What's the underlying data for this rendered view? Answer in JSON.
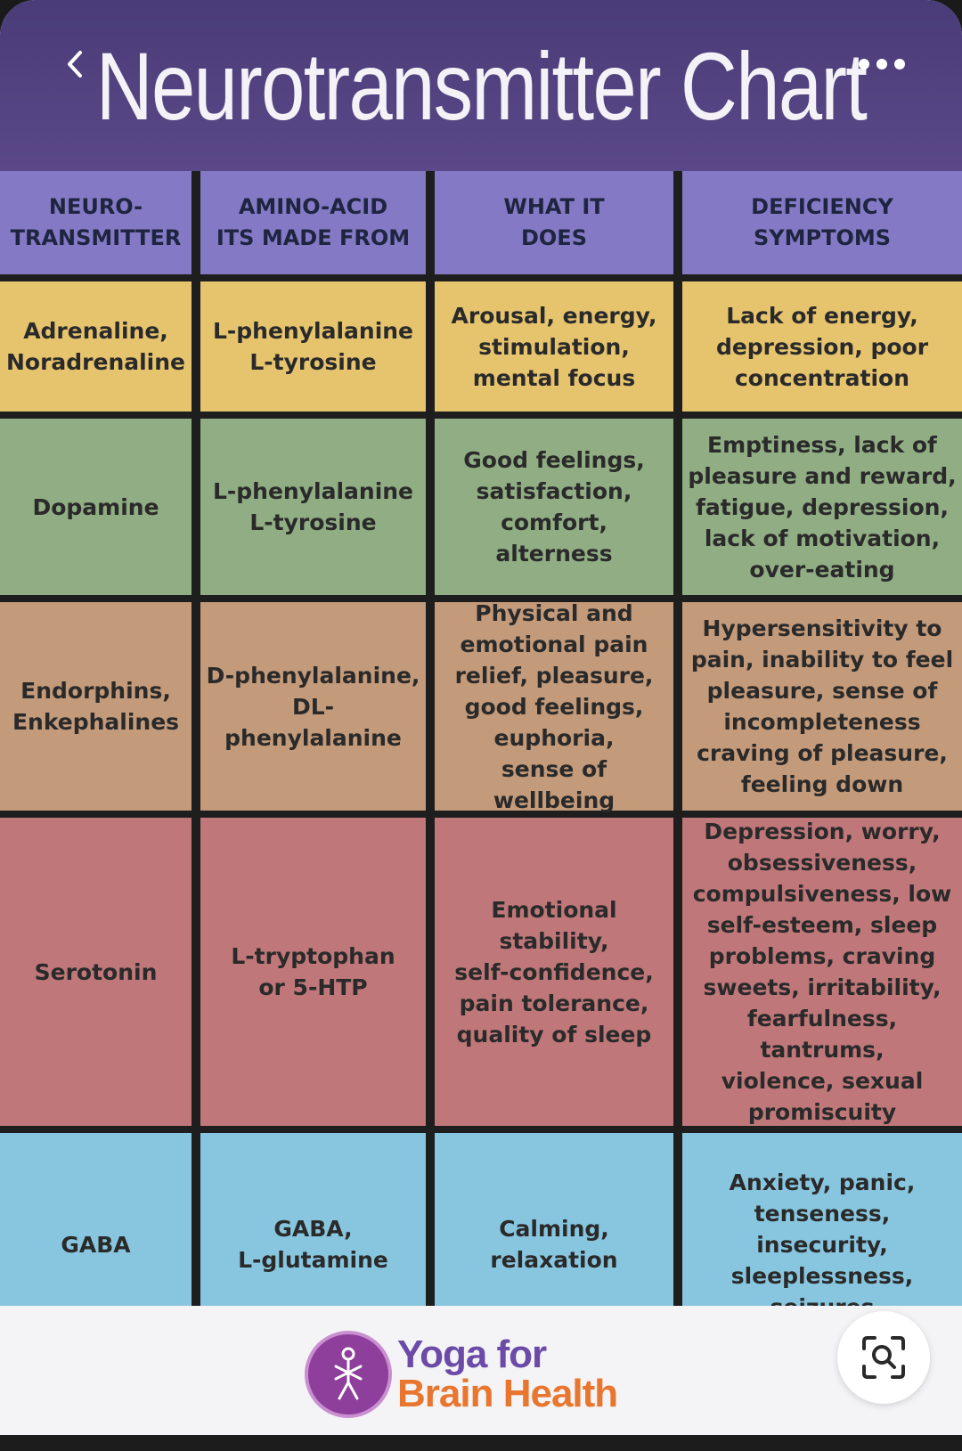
{
  "header": {
    "title": "Neurotransmitter Chart"
  },
  "table": {
    "headers": [
      "NEURO-\nTRANSMITTER",
      "AMINO-ACID\nITS MADE FROM",
      "WHAT IT\nDOES",
      "DEFICIENCY\nSYMPTOMS"
    ],
    "rows": [
      [
        "Adrenaline,\nNoradrenaline",
        "L-phenylalanine\nL-tyrosine",
        "Arousal, energy,\nstimulation,\nmental focus",
        "Lack of energy,\ndepression, poor\nconcentration"
      ],
      [
        "Dopamine",
        "L-phenylalanine\nL-tyrosine",
        "Good feelings,\nsatisfaction,\ncomfort,\nalterness",
        "Emptiness, lack of\npleasure and reward,\nfatigue, depression,\nlack of motivation,\nover-eating"
      ],
      [
        "Endorphins,\nEnkephalines",
        "D-phenylalanine,\nDL-phenylalanine",
        "Physical and\nemotional pain\nrelief, pleasure,\ngood feelings,\neuphoria,\nsense of wellbeing",
        "Hypersensitivity to\npain, inability to feel\npleasure, sense of\nincompleteness\ncraving of pleasure,\nfeeling down"
      ],
      [
        "Serotonin",
        "L-tryptophan\nor 5-HTP",
        "Emotional stability,\nself-confidence,\npain tolerance,\nquality of sleep",
        "Depression, worry,\nobsessiveness,\ncompulsiveness, low\nself-esteem, sleep\nproblems, craving\nsweets, irritability,\nfearfulness, tantrums,\nviolence, sexual\npromiscuity"
      ],
      [
        "GABA",
        "GABA,\nL-glutamine",
        "Calming,\nrelaxation",
        "Anxiety, panic,\ntenseness, insecurity,\nsleeplessness,\nseizures"
      ]
    ]
  },
  "footer": {
    "logo_line1": "Yoga for",
    "logo_line2": "Brain Health"
  },
  "icons": {
    "back": "chevron-left-icon",
    "more": "more-dots-icon",
    "lens": "visual-search-icon"
  },
  "colors": {
    "header": "#4a3c78",
    "table_header": "#8479c4",
    "row1": "#e6c46e",
    "row2": "#91ad84",
    "row3": "#c39a7a",
    "row4": "#bf7779",
    "row5": "#88c6df",
    "logo_purple": "#6b4aa8",
    "logo_orange": "#e8762e"
  }
}
